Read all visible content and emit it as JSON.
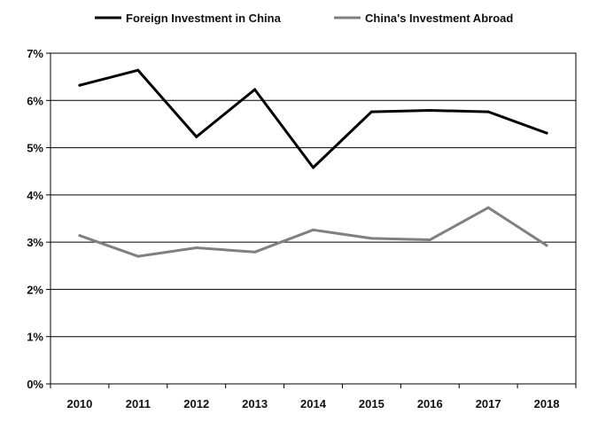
{
  "chart_data": {
    "type": "line",
    "title": "",
    "xlabel": "",
    "ylabel": "",
    "categories": [
      "2010",
      "2011",
      "2012",
      "2013",
      "2014",
      "2015",
      "2016",
      "2017",
      "2018"
    ],
    "series": [
      {
        "name": "Foreign Investment in China",
        "color": "#000000",
        "values": [
          6.32,
          6.64,
          5.23,
          6.23,
          4.58,
          5.76,
          5.79,
          5.76,
          5.31
        ]
      },
      {
        "name": "China's Investment Abroad",
        "color": "#808080",
        "values": [
          3.14,
          2.7,
          2.88,
          2.79,
          3.26,
          3.08,
          3.05,
          3.73,
          2.93
        ]
      }
    ],
    "ylim": [
      0,
      7
    ],
    "y_ticks": [
      "0%",
      "1%",
      "2%",
      "3%",
      "4%",
      "5%",
      "6%",
      "7%"
    ],
    "grid": true,
    "legend_position": "top"
  }
}
